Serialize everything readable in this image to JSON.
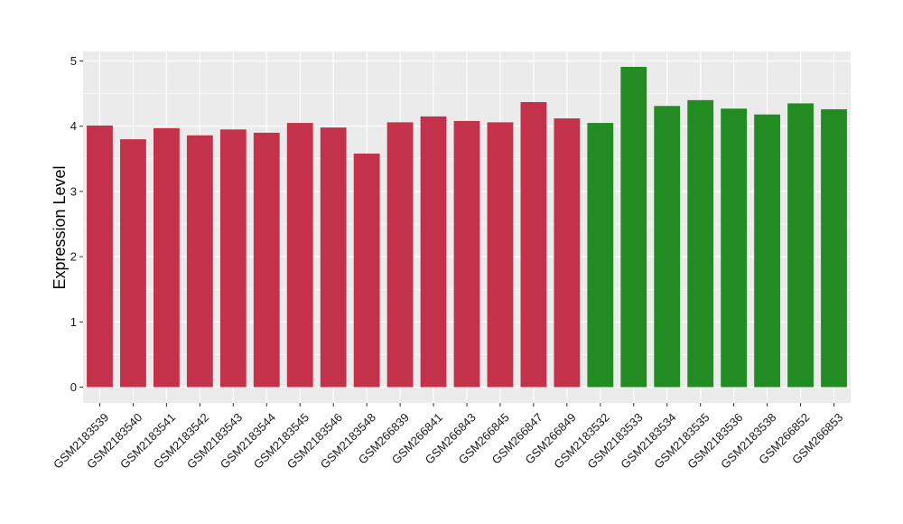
{
  "chart_data": {
    "type": "bar",
    "title": "",
    "xlabel": "",
    "ylabel": "Expression Level",
    "ylim": [
      0,
      5.15
    ],
    "yticks": [
      0,
      1,
      2,
      3,
      4,
      5
    ],
    "grid": true,
    "legend": "none",
    "colors": {
      "group1": "#c4314b",
      "group2": "#228b22",
      "panel": "#ebebeb",
      "grid": "#ffffff"
    },
    "categories": [
      "GSM2183539",
      "GSM2183540",
      "GSM2183541",
      "GSM2183542",
      "GSM2183543",
      "GSM2183544",
      "GSM2183545",
      "GSM2183546",
      "GSM2183548",
      "GSM266839",
      "GSM266841",
      "GSM266843",
      "GSM266845",
      "GSM266847",
      "GSM266849",
      "GSM2183532",
      "GSM2183533",
      "GSM2183534",
      "GSM2183535",
      "GSM2183536",
      "GSM2183538",
      "GSM266852",
      "GSM266853"
    ],
    "values": [
      4.01,
      3.8,
      3.97,
      3.86,
      3.95,
      3.9,
      4.05,
      3.98,
      3.58,
      4.06,
      4.15,
      4.08,
      4.06,
      4.37,
      4.12,
      4.05,
      4.91,
      4.31,
      4.4,
      4.27,
      4.18,
      4.35,
      4.26
    ],
    "groups": [
      "group1",
      "group1",
      "group1",
      "group1",
      "group1",
      "group1",
      "group1",
      "group1",
      "group1",
      "group1",
      "group1",
      "group1",
      "group1",
      "group1",
      "group1",
      "group2",
      "group2",
      "group2",
      "group2",
      "group2",
      "group2",
      "group2",
      "group2"
    ]
  }
}
